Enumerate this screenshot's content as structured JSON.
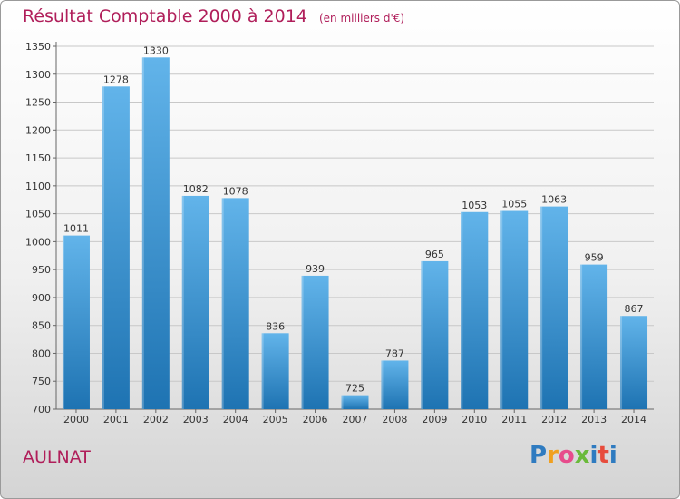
{
  "header": {
    "title": "Résultat Comptable 2000 à 2014",
    "subtitle": "(en milliers d'€)"
  },
  "footer": {
    "place": "AULNAT",
    "logo": [
      "P",
      "r",
      "o",
      "x",
      "i",
      "t",
      "i"
    ]
  },
  "colors": {
    "title": "#b01e5a",
    "bar_top": "#62b4ea",
    "bar_bottom": "#1e73b2",
    "logo": [
      "#2f7bc0",
      "#f0a020",
      "#e74c8c",
      "#6aba3a",
      "#2f7bc0",
      "#e74c3c",
      "#2f7bc0"
    ]
  },
  "chart_data": {
    "type": "bar",
    "categories": [
      "2000",
      "2001",
      "2002",
      "2003",
      "2004",
      "2005",
      "2006",
      "2007",
      "2008",
      "2009",
      "2010",
      "2011",
      "2012",
      "2013",
      "2014"
    ],
    "values": [
      1011,
      1278,
      1330,
      1082,
      1078,
      836,
      939,
      725,
      787,
      965,
      1053,
      1055,
      1063,
      959,
      867
    ],
    "ylim": [
      700,
      1350
    ],
    "yticks": [
      700,
      750,
      800,
      850,
      900,
      950,
      1000,
      1050,
      1100,
      1150,
      1200,
      1250,
      1300,
      1350
    ],
    "title": "Résultat Comptable 2000 à 2014",
    "xlabel": "",
    "ylabel": "",
    "grid": true
  }
}
